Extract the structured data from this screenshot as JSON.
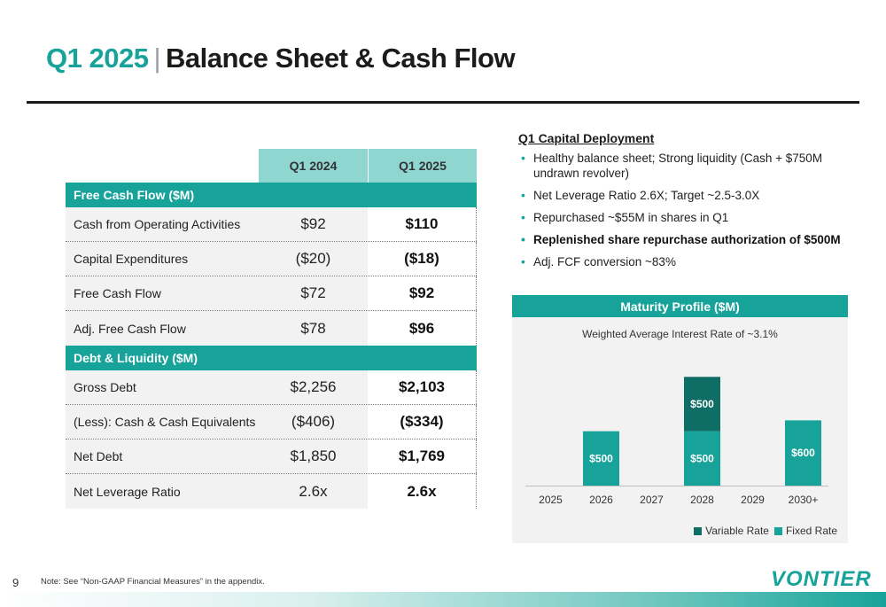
{
  "title": {
    "period": "Q1 2025",
    "separator": "|",
    "main": "Balance Sheet & Cash Flow"
  },
  "table": {
    "headers": [
      "Q1 2024",
      "Q1 2025"
    ],
    "sections": [
      {
        "title": "Free Cash Flow ($M)",
        "rows": [
          {
            "label": "Cash from Operating Activities",
            "q1_2024": "$92",
            "q1_2025": "$110"
          },
          {
            "label": "Capital Expenditures",
            "q1_2024": "($20)",
            "q1_2025": "($18)"
          },
          {
            "label": "Free Cash Flow",
            "q1_2024": "$72",
            "q1_2025": "$92"
          },
          {
            "label": "Adj. Free Cash Flow",
            "q1_2024": "$78",
            "q1_2025": "$96"
          }
        ]
      },
      {
        "title": "Debt & Liquidity ($M)",
        "rows": [
          {
            "label": "Gross Debt",
            "q1_2024": "$2,256",
            "q1_2025": "$2,103"
          },
          {
            "label": "(Less): Cash & Cash Equivalents",
            "q1_2024": "($406)",
            "q1_2025": "($334)"
          },
          {
            "label": "Net Debt",
            "q1_2024": "$1,850",
            "q1_2025": "$1,769"
          },
          {
            "label": "Net Leverage Ratio",
            "q1_2024": "2.6x",
            "q1_2025": "2.6x"
          }
        ]
      }
    ]
  },
  "capital_deployment": {
    "title": "Q1 Capital Deployment",
    "bullets": [
      {
        "text": "Healthy balance sheet; Strong liquidity (Cash + $750M undrawn revolver)",
        "bold": false
      },
      {
        "text": "Net Leverage Ratio 2.6X; Target ~2.5-3.0X",
        "bold": false
      },
      {
        "text": "Repurchased ~$55M in shares in Q1",
        "bold": false
      },
      {
        "text": "Replenished share repurchase authorization of $500M",
        "bold": true
      },
      {
        "text": "Adj. FCF conversion ~83%",
        "bold": false
      }
    ]
  },
  "maturity": {
    "header": "Maturity Profile ($M)",
    "subtitle": "Weighted Average Interest Rate of ~3.1%"
  },
  "chart_data": {
    "type": "bar",
    "stacked": true,
    "title": "Maturity Profile ($M)",
    "subtitle": "Weighted Average Interest Rate of ~3.1%",
    "categories": [
      "2025",
      "2026",
      "2027",
      "2028",
      "2029",
      "2030+"
    ],
    "series": [
      {
        "name": "Fixed Rate",
        "values": [
          0,
          500,
          0,
          500,
          0,
          600
        ],
        "color": "#17a39a"
      },
      {
        "name": "Variable Rate",
        "values": [
          0,
          0,
          0,
          500,
          0,
          0
        ],
        "color": "#0e6e66"
      }
    ],
    "data_labels": [
      {
        "category": "2026",
        "series": "Fixed Rate",
        "text": "$500"
      },
      {
        "category": "2028",
        "series": "Fixed Rate",
        "text": "$500"
      },
      {
        "category": "2028",
        "series": "Variable Rate",
        "text": "$500"
      },
      {
        "category": "2030+",
        "series": "Fixed Rate",
        "text": "$600"
      }
    ],
    "ylim": [
      0,
      1100
    ],
    "grid": false,
    "legend": "bottom-right",
    "legend_entries": [
      "Variable Rate",
      "Fixed Rate"
    ]
  },
  "footer": {
    "page_number": "9",
    "note": "Note: See “Non-GAAP Financial Measures” in the appendix.",
    "logo": "VONTIER"
  },
  "colors": {
    "accent": "#17a39a",
    "accent_dark": "#0e6e66",
    "header_light": "#8fd5d0",
    "panel_gray": "#f2f2f2"
  }
}
